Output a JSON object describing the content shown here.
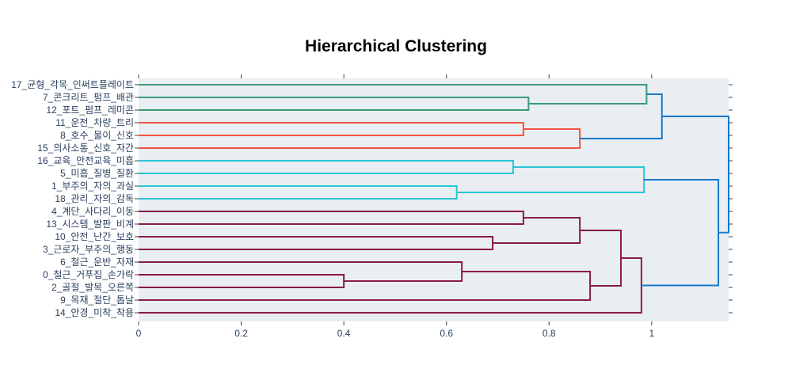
{
  "chart_data": {
    "type": "dendrogram",
    "orientation": "left",
    "title": "Hierarchical Clustering",
    "xlabel": "",
    "ylabel": "",
    "xlim": [
      0,
      1.15
    ],
    "x_ticks": [
      0,
      0.2,
      0.4,
      0.6,
      0.8,
      1
    ],
    "x_tick_labels": [
      "0",
      "0.2",
      "0.4",
      "0.6",
      "0.8",
      "1"
    ],
    "grid": false,
    "background": "#e9eef2",
    "leaves": [
      "17_균형_각목_인써트플레이트",
      "7_콘크리트_펌프_배관",
      "12_포트_펌프_레미콘",
      "11_운전_차량_트리",
      "8_호수_물이_신호",
      "15_의사소통_신호_자간",
      "16_교육_안전교육_미흡",
      "5_미흡_질병_질환",
      "1_부주의_자의_과실",
      "18_관리_자의_감독",
      "4_계단_사다리_이동",
      "13_시스템_발판_비계",
      "10_안전_난간_보호",
      "3_근로자_부주의_행동",
      "6_철근_운반_자재",
      "0_철근_거푸집_손가락",
      "2_골절_발목_오른쪽",
      "9_목재_절단_톱날",
      "14_안경_미착_착용"
    ],
    "merges": [
      {
        "a": 15,
        "b": 16,
        "height": 0.4,
        "color": "#8b1a4a"
      },
      {
        "a": 8,
        "b": 9,
        "height": 0.62,
        "color": "#29c5d4"
      },
      {
        "a": 14,
        "b": "m0",
        "height": 0.63,
        "color": "#8b1a4a"
      },
      {
        "a": 12,
        "b": 13,
        "height": 0.69,
        "color": "#8b1a4a"
      },
      {
        "a": 6,
        "b": 7,
        "height": 0.73,
        "color": "#29c5d4"
      },
      {
        "a": 3,
        "b": 4,
        "height": 0.75,
        "color": "#f2543c"
      },
      {
        "a": 10,
        "b": 11,
        "height": 0.75,
        "color": "#8b1a4a"
      },
      {
        "a": 1,
        "b": 2,
        "height": 0.76,
        "color": "#3c9a74"
      },
      {
        "a": "m5",
        "b": 5,
        "height": 0.86,
        "color": "#f2543c"
      },
      {
        "a": "m6",
        "b": "m3",
        "height": 0.86,
        "color": "#8b1a4a"
      },
      {
        "a": "m2",
        "b": 17,
        "height": 0.88,
        "color": "#8b1a4a"
      },
      {
        "a": "m9",
        "b": "m10",
        "height": 0.94,
        "color": "#8b1a4a"
      },
      {
        "a": "m11",
        "b": 18,
        "height": 0.98,
        "color": "#8b1a4a"
      },
      {
        "a": "m4",
        "b": "m1",
        "height": 0.985,
        "color": "#29c5d4"
      },
      {
        "a": 0,
        "b": "m7",
        "height": 0.99,
        "color": "#3c9a74"
      },
      {
        "a": "m14",
        "b": "m8",
        "height": 1.02,
        "color": "#1a78c8"
      },
      {
        "a": "m13",
        "b": "m12",
        "height": 1.13,
        "color": "#1a78c8"
      },
      {
        "a": "m15",
        "b": "m16",
        "height": 1.15,
        "color": "#1a78c8"
      }
    ],
    "colors": {
      "green": "#3c9a74",
      "red": "#f2543c",
      "cyan": "#29c5d4",
      "maroon": "#8b1a4a",
      "blue": "#1a78c8",
      "tick_text": "#2a3f5f"
    }
  }
}
